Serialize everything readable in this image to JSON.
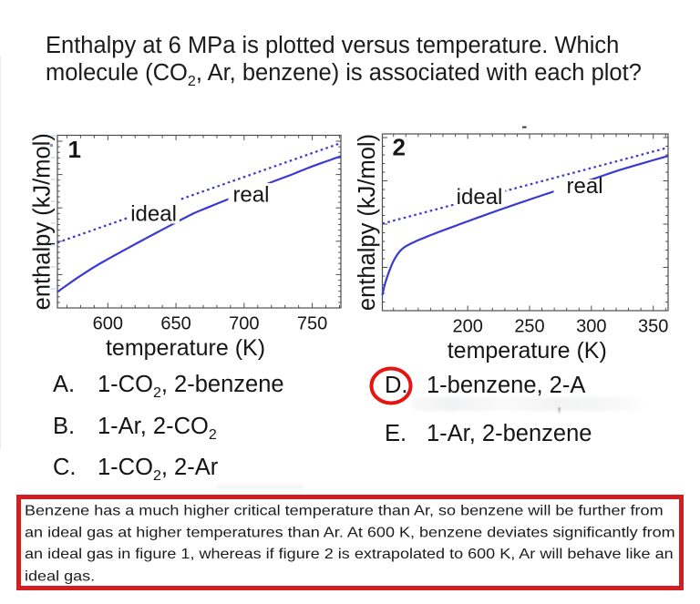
{
  "question": {
    "title_lines": [
      "Enthalpy at 6 MPa is plotted versus temperature. Which",
      "molecule (CO~2~, Ar, benzene) is associated with each plot?"
    ]
  },
  "chart_data": [
    {
      "type": "line",
      "panel_label": "1",
      "xlabel": "temperature (K)",
      "ylabel": "enthalpy (kJ/mol)",
      "xlim": [
        563,
        771
      ],
      "xticks": [
        600,
        650,
        700,
        750
      ],
      "x_minor_step": 10,
      "ylim": [
        0,
        1
      ],
      "y_note": "y axis unlabeled (relative enthalpy, fraction of plot height)",
      "line_color": "#3a3ad2",
      "series": [
        {
          "name": "ideal",
          "style": "dotted",
          "x": [
            563,
            771
          ],
          "y": [
            0.3784,
            0.9551
          ]
        },
        {
          "name": "real",
          "style": "solid",
          "x": [
            563.0,
            569.0,
            575.0,
            581.1,
            587.1,
            593.1,
            599.1,
            605.1,
            611.8,
            619.8,
            628.5,
            637.9,
            647.3,
            656.6,
            664.0,
            673.4,
            683.4,
            693.4,
            704.1,
            714.8,
            725.5,
            736.2,
            746.9,
            756.3,
            764.3,
            771.0
          ],
          "y": [
            0.0923,
            0.1266,
            0.1599,
            0.1921,
            0.2227,
            0.2517,
            0.2786,
            0.305,
            0.334,
            0.3683,
            0.4053,
            0.4449,
            0.4839,
            0.5224,
            0.5515,
            0.5821,
            0.6142,
            0.6459,
            0.6792,
            0.7119,
            0.7446,
            0.7763,
            0.8106,
            0.838,
            0.8602,
            0.8786
          ]
        }
      ],
      "labels": [
        {
          "text": "ideal",
          "x": 633.6,
          "y": 0.504
        },
        {
          "text": "real",
          "x": 705.1,
          "y": 0.6148
        }
      ]
    },
    {
      "type": "line",
      "panel_label": "2",
      "xlabel": "temperature (K)",
      "ylabel": "enthalpy (kJ/mol)",
      "xlim": [
        131,
        362
      ],
      "xticks": [
        200,
        250,
        300,
        350
      ],
      "x_minor_step": 10,
      "ylim": [
        0,
        1
      ],
      "y_note": "y axis unlabeled (relative enthalpy, fraction of plot height)",
      "line_color": "#3a3ad2",
      "series": [
        {
          "name": "ideal",
          "style": "dotted",
          "x": [
            131,
            362
          ],
          "y": [
            0.4923,
            0.9227
          ]
        },
        {
          "name": "real",
          "style": "solid",
          "x": [
            131.0,
            132.1,
            133.6,
            135.4,
            137.3,
            139.5,
            142.1,
            145.0,
            148.7,
            153.5,
            159.4,
            166.0,
            173.4,
            181.5,
            190.3,
            200.6,
            212.4,
            225.7,
            239.7,
            254.4,
            269.9,
            286.1,
            303.1,
            320.7,
            339.2,
            349.5,
            362.0
          ],
          "y": [
            0.0876,
            0.1237,
            0.1624,
            0.201,
            0.2371,
            0.2732,
            0.3067,
            0.3351,
            0.3582,
            0.3773,
            0.3969,
            0.416,
            0.4361,
            0.4577,
            0.4804,
            0.5072,
            0.5371,
            0.5701,
            0.6041,
            0.6392,
            0.6747,
            0.7113,
            0.749,
            0.7907,
            0.8294,
            0.8505,
            0.8753
          ]
        }
      ],
      "labels": [
        {
          "text": "ideal",
          "x": 209.5,
          "y": 0.6031
        },
        {
          "text": "real",
          "x": 294.6,
          "y": 0.665
        }
      ]
    }
  ],
  "options": {
    "left": [
      {
        "label": "A.",
        "text": "1-CO~2~, 2-benzene"
      },
      {
        "label": "B.",
        "text": "1-Ar, 2-CO~2~"
      },
      {
        "label": "C.",
        "text": "1-CO~2~, 2-Ar"
      }
    ],
    "right": [
      {
        "label": "D.",
        "text": "1-benzene, 2-A"
      },
      {
        "label": "E.",
        "text": "1-Ar, 2-benzene"
      }
    ],
    "selected": "D",
    "circle_color": "#e31613"
  },
  "explanation": {
    "border_color": "#d21e1e",
    "lines": [
      "Benzene has a much higher critical temperature than Ar, so benzene will be further from",
      "an ideal gas at higher temperatures than Ar. At 600 K, benzene deviates significantly from",
      "an ideal gas in figure 1, whereas if figure 2 is extrapolated to 600 K, Ar will behave like an",
      "ideal gas."
    ]
  },
  "ghost_artifact": {
    "comma": ","
  }
}
